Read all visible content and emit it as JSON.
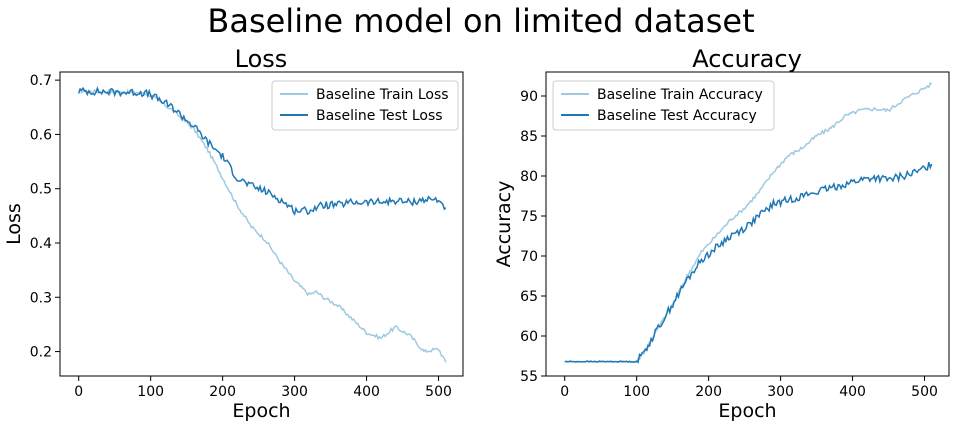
{
  "figure": {
    "title": "Baseline model on limited dataset"
  },
  "chart_data": [
    {
      "type": "line",
      "title": "Loss",
      "xlabel": "Epoch",
      "ylabel": "Loss",
      "xlim": [
        -26,
        534
      ],
      "ylim": [
        0.155,
        0.715
      ],
      "xticks": [
        0,
        100,
        200,
        300,
        400,
        500
      ],
      "yticks": [
        0.2,
        0.3,
        0.4,
        0.5,
        0.6,
        0.7
      ],
      "ytick_labels": [
        "0.2",
        "0.3",
        "0.4",
        "0.5",
        "0.6",
        "0.7"
      ],
      "legend": "top-right",
      "grid": false,
      "series": [
        {
          "name": "Baseline Train Loss",
          "color": "#9ecae1",
          "x": [
            0,
            50,
            90,
            100,
            130,
            160,
            180,
            200,
            220,
            240,
            260,
            280,
            300,
            320,
            330,
            340,
            360,
            380,
            400,
            420,
            440,
            460,
            480,
            500,
            510
          ],
          "y": [
            0.68,
            0.678,
            0.677,
            0.672,
            0.645,
            0.61,
            0.57,
            0.52,
            0.47,
            0.43,
            0.405,
            0.365,
            0.33,
            0.305,
            0.31,
            0.3,
            0.285,
            0.26,
            0.235,
            0.225,
            0.245,
            0.23,
            0.2,
            0.205,
            0.18
          ]
        },
        {
          "name": "Baseline Test Loss",
          "color": "#1f77b4",
          "x": [
            0,
            50,
            90,
            100,
            130,
            160,
            180,
            200,
            220,
            240,
            260,
            280,
            300,
            320,
            340,
            360,
            380,
            400,
            420,
            440,
            460,
            480,
            500,
            510
          ],
          "y": [
            0.68,
            0.678,
            0.677,
            0.673,
            0.65,
            0.615,
            0.585,
            0.56,
            0.52,
            0.505,
            0.495,
            0.48,
            0.46,
            0.46,
            0.47,
            0.47,
            0.475,
            0.475,
            0.475,
            0.478,
            0.475,
            0.48,
            0.48,
            0.465
          ]
        }
      ]
    },
    {
      "type": "line",
      "title": "Accuracy",
      "xlabel": "Epoch",
      "ylabel": "Accuracy",
      "xlim": [
        -26,
        534
      ],
      "ylim": [
        55.0,
        93.0
      ],
      "xticks": [
        0,
        100,
        200,
        300,
        400,
        500
      ],
      "yticks": [
        55,
        60,
        65,
        70,
        75,
        80,
        85,
        90
      ],
      "ytick_labels": [
        "55",
        "60",
        "65",
        "70",
        "75",
        "80",
        "85",
        "90"
      ],
      "legend": "top-left",
      "grid": false,
      "series": [
        {
          "name": "Baseline Train Accuracy",
          "color": "#9ecae1",
          "x": [
            0,
            50,
            100,
            110,
            130,
            150,
            170,
            190,
            210,
            230,
            250,
            270,
            290,
            310,
            330,
            350,
            370,
            390,
            410,
            430,
            450,
            470,
            490,
            510
          ],
          "y": [
            56.8,
            56.8,
            56.8,
            58.0,
            61.0,
            64.0,
            67.5,
            70.5,
            72.5,
            74.5,
            76.0,
            78.0,
            80.5,
            82.5,
            83.5,
            85.0,
            86.0,
            87.5,
            88.2,
            88.4,
            88.2,
            89.5,
            90.5,
            91.5
          ]
        },
        {
          "name": "Baseline Test Accuracy",
          "color": "#1f77b4",
          "x": [
            0,
            50,
            100,
            110,
            130,
            150,
            170,
            190,
            210,
            230,
            250,
            270,
            290,
            310,
            330,
            350,
            370,
            390,
            410,
            430,
            450,
            470,
            490,
            510
          ],
          "y": [
            56.8,
            56.8,
            56.8,
            58.0,
            61.0,
            64.0,
            67.0,
            69.5,
            71.0,
            72.5,
            73.5,
            75.0,
            76.5,
            77.0,
            77.5,
            78.0,
            78.5,
            79.0,
            79.5,
            79.8,
            79.5,
            80.0,
            80.5,
            81.5
          ]
        }
      ]
    }
  ]
}
